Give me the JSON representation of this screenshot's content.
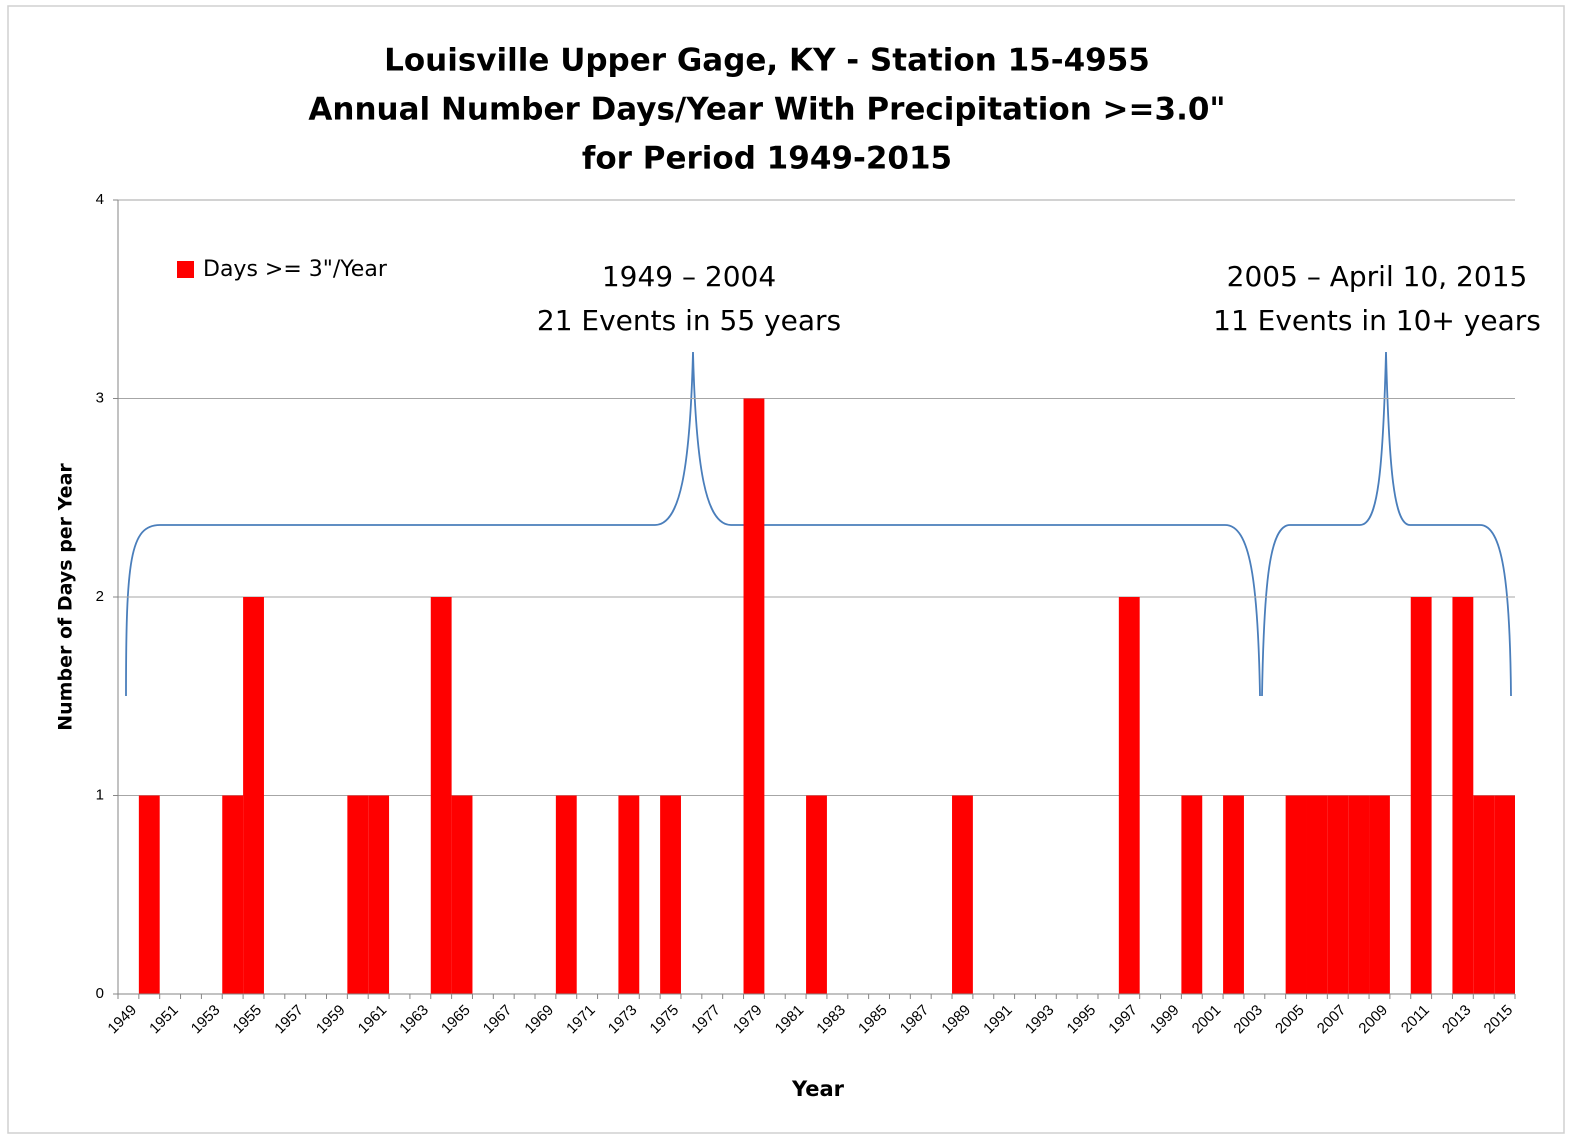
{
  "chart_data": {
    "type": "bar",
    "title": [
      "Louisville Upper Gage, KY - Station 15-4955",
      "Annual Number Days/Year With Precipitation >=3.0\"",
      "for Period 1949-2015"
    ],
    "x_label": "Year",
    "y_label": "Number of Days per Year",
    "categories": [
      "1949",
      null,
      "1951",
      null,
      "1953",
      null,
      "1955",
      null,
      "1957",
      null,
      "1959",
      null,
      "1961",
      null,
      "1963",
      null,
      "1965",
      null,
      "1967",
      null,
      "1969",
      null,
      "1971",
      null,
      "1973",
      null,
      "1975",
      null,
      "1977",
      null,
      "1979",
      null,
      "1981",
      null,
      "1983",
      null,
      "1985",
      null,
      "1987",
      null,
      "1989",
      null,
      "1991",
      null,
      "1993",
      null,
      "1995",
      null,
      "1997",
      null,
      "1999",
      null,
      "2001",
      null,
      "2003",
      null,
      "2005",
      null,
      "2007",
      null,
      "2009",
      null,
      "2011",
      null,
      "2013",
      null,
      "2015"
    ],
    "series": [
      {
        "name": "Days >= 3\"/Year",
        "color": "#ff0000",
        "values": [
          0,
          1,
          0,
          0,
          0,
          1,
          2,
          0,
          0,
          0,
          0,
          1,
          1,
          0,
          0,
          2,
          1,
          0,
          0,
          0,
          0,
          1,
          0,
          0,
          1,
          0,
          1,
          0,
          0,
          0,
          3,
          0,
          0,
          1,
          0,
          0,
          0,
          0,
          0,
          0,
          1,
          0,
          0,
          0,
          0,
          0,
          0,
          0,
          2,
          0,
          0,
          1,
          0,
          1,
          0,
          0,
          1,
          1,
          1,
          1,
          1,
          0,
          2,
          0,
          2,
          1,
          1
        ]
      }
    ],
    "ylim": [
      0,
      4
    ],
    "yticks": [
      0,
      1,
      2,
      3,
      4
    ],
    "grid": true,
    "legend": "top-left",
    "annotations": [
      [
        "1949 – 2004",
        "21 Events in 55 years"
      ],
      [
        "2005 – April 10, 2015",
        "11 Events in 10+ years"
      ]
    ]
  }
}
